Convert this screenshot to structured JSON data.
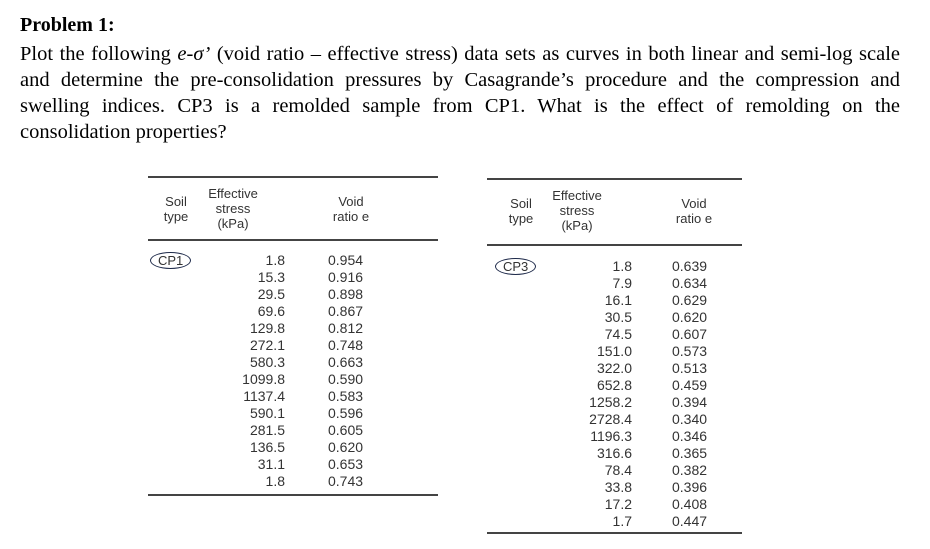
{
  "title": "Problem 1:",
  "paragraph": {
    "before": "Plot the following ",
    "italic": "e-σ’",
    "after": " (void ratio – effective stress) data sets as curves in both linear and semi-log scale and determine the pre-consolidation pressures by Casagrande’s procedure and the compression and swelling indices.  CP3 is a remolded sample from CP1. What is the effect of remolding on the consolidation properties?"
  },
  "headers": {
    "soil": [
      "Soil",
      "type"
    ],
    "stress": [
      "Effective",
      "stress",
      "(kPa)"
    ],
    "void": [
      "Void",
      "ratio e"
    ]
  },
  "tables": [
    {
      "soil_type": "CP1",
      "stress": [
        "1.8",
        "15.3",
        "29.5",
        "69.6",
        "129.8",
        "272.1",
        "580.3",
        "1099.8",
        "1137.4",
        "590.1",
        "281.5",
        "136.5",
        "31.1",
        "1.8"
      ],
      "void_ratio": [
        "0.954",
        "0.916",
        "0.898",
        "0.867",
        "0.812",
        "0.748",
        "0.663",
        "0.590",
        "0.583",
        "0.596",
        "0.605",
        "0.620",
        "0.653",
        "0.743"
      ]
    },
    {
      "soil_type": "CP3",
      "stress": [
        "1.8",
        "7.9",
        "16.1",
        "30.5",
        "74.5",
        "151.0",
        "322.0",
        "652.8",
        "1258.2",
        "2728.4",
        "1196.3",
        "316.6",
        "78.4",
        "33.8",
        "17.2",
        "1.7"
      ],
      "void_ratio": [
        "0.639",
        "0.634",
        "0.629",
        "0.620",
        "0.607",
        "0.573",
        "0.513",
        "0.459",
        "0.394",
        "0.340",
        "0.346",
        "0.365",
        "0.382",
        "0.396",
        "0.408",
        "0.447"
      ]
    }
  ]
}
